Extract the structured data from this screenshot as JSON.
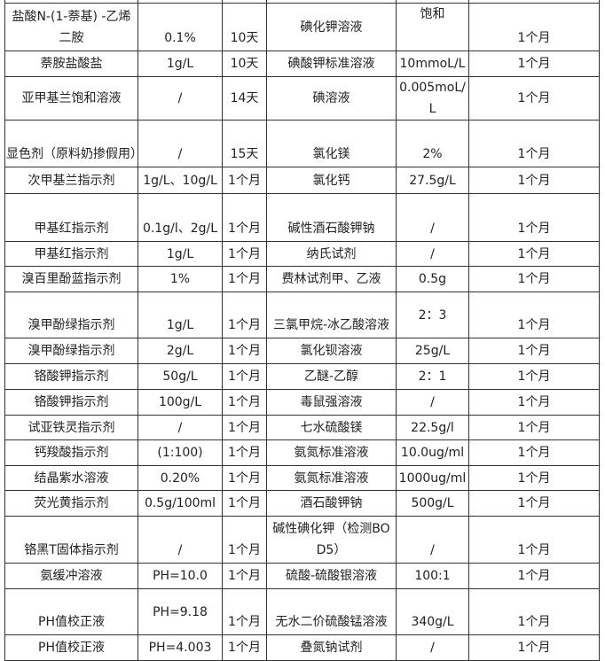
{
  "rows": [
    {
      "h": 52,
      "c": [
        "盐酸N-(1-萘基) -乙烯二胺",
        "0.1%",
        "10天",
        "碘化钾溶液",
        "饱和",
        "1个月"
      ],
      "v": [
        "b",
        "b",
        "b",
        "m",
        "t",
        "b"
      ]
    },
    {
      "h": 29,
      "c": [
        "萘胺盐酸盐",
        "1g/L",
        "10天",
        "碘酸钾标准溶液",
        "10mmoL/L",
        "1个月"
      ]
    },
    {
      "h": 28,
      "c": [
        "亚甲基兰饱和溶液",
        "/",
        "14天",
        "碘溶液",
        "0.005moL/L",
        "1个月"
      ]
    },
    {
      "h": 51,
      "c": [
        "显色剂（原料奶掺假用）",
        "/",
        "15天",
        "氯化镁",
        "2%",
        "1个月"
      ],
      "v": [
        "b",
        "b",
        "b",
        "b",
        "b",
        "b"
      ]
    },
    {
      "h": 30,
      "c": [
        "次甲基兰指示剂",
        "1g/L、10g/L",
        "1个月",
        "氯化钙",
        "27.5g/L",
        "1个月"
      ]
    },
    {
      "h": 52,
      "c": [
        "甲基红指示剂",
        "0.1g/l、2g/L",
        "1个月",
        "碱性酒石酸钾钠",
        "/",
        "1个月"
      ],
      "v": [
        "b",
        "b",
        "b",
        "b",
        "b",
        "b"
      ]
    },
    {
      "h": 28,
      "c": [
        "甲基红指示剂",
        "1g/L",
        "1个月",
        "纳氏试剂",
        "/",
        "1个月"
      ]
    },
    {
      "h": 29,
      "c": [
        "溴百里酚蓝指示剂",
        "1%",
        "1个月",
        "费林试剂甲、乙液",
        "0.5g",
        "1个月"
      ]
    },
    {
      "h": 50,
      "c": [
        "溴甲酚绿指示剂",
        "1g/L",
        "1个月",
        "三氯甲烷-冰乙酸溶液",
        "2：3",
        "1个月"
      ],
      "v": [
        "b",
        "b",
        "b",
        "b",
        "m",
        "b"
      ]
    },
    {
      "h": 29,
      "c": [
        "溴甲酚绿指示剂",
        "2g/L",
        "1个月",
        "氯化钡溶液",
        "25g/L",
        "1个月"
      ]
    },
    {
      "h": 29,
      "c": [
        "铬酸钾指示剂",
        "50g/L",
        "1个月",
        "乙醚-乙醇",
        "2：1",
        "1个月"
      ]
    },
    {
      "h": 29,
      "c": [
        "铬酸钾指示剂",
        "100g/L",
        "1个月",
        "毒鼠强溶液",
        "/",
        "1个月"
      ]
    },
    {
      "h": 28,
      "c": [
        "试亚铁灵指示剂",
        "/",
        "1个月",
        "七水硫酸镁",
        "22.5g/l",
        "1个月"
      ]
    },
    {
      "h": 29,
      "c": [
        "钙羧酸指示剂",
        "(1:100)",
        "1个月",
        "氨氮标准溶液",
        "10.0ug/ml",
        "1个月"
      ]
    },
    {
      "h": 28,
      "c": [
        "结晶紫水溶液",
        "0.20%",
        "1个月",
        "氨氮标准溶液",
        "1000ug/ml",
        "1个月"
      ]
    },
    {
      "h": 29,
      "c": [
        "荧光黄指示剂",
        "0.5g/100ml",
        "1个月",
        "酒石酸钾钠",
        "500g/L",
        "1个月"
      ]
    },
    {
      "h": 51,
      "c": [
        "铬黑T固体指示剂",
        "/",
        "1个月",
        "碱性碘化钾（检测BOD5）",
        "/",
        "1个月"
      ],
      "v": [
        "b",
        "b",
        "b",
        "b",
        "b",
        "b"
      ]
    },
    {
      "h": 29,
      "c": [
        "氨缓冲溶液",
        "PH=10.0",
        "1个月",
        "硫酸-硫酸银溶液",
        "100:1",
        "1个月"
      ]
    },
    {
      "h": 50,
      "c": [
        "PH值校正液",
        "PH=9.18",
        "1个月",
        "无水二价硫酸锰溶液",
        "340g/L",
        "1个月"
      ],
      "v": [
        "b",
        "m",
        "b",
        "b",
        "b",
        "b"
      ]
    },
    {
      "h": 29,
      "c": [
        "PH值校正液",
        "PH=4.003",
        "1个月",
        "叠氮钠试剂",
        "/",
        "1个月"
      ]
    }
  ]
}
